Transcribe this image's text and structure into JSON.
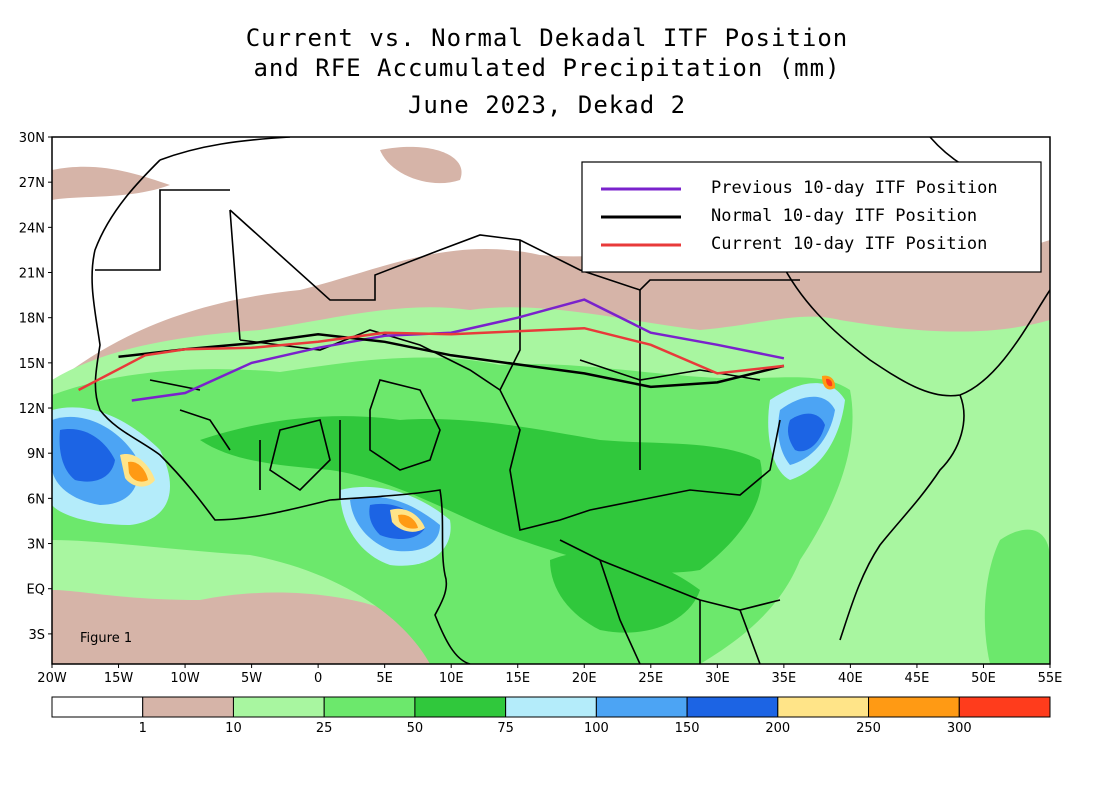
{
  "title": {
    "line1": "Current vs. Normal Dekadal ITF Position",
    "line2": "and RFE Accumulated Precipitation (mm)",
    "line3": "June 2023, Dekad 2"
  },
  "figure_label": "Figure 1",
  "legend": [
    {
      "label": "Previous 10-day ITF Position",
      "color": "#7a22cc"
    },
    {
      "label": "Normal 10-day ITF Position",
      "color": "#000000"
    },
    {
      "label": "Current 10-day ITF Position",
      "color": "#e83a3a"
    }
  ],
  "axes": {
    "lon_labels": [
      "20W",
      "15W",
      "10W",
      "5W",
      "0",
      "5E",
      "10E",
      "15E",
      "20E",
      "25E",
      "30E",
      "35E",
      "40E",
      "45E",
      "50E",
      "55E"
    ],
    "lat_labels": [
      "30N",
      "27N",
      "24N",
      "21N",
      "18N",
      "15N",
      "12N",
      "9N",
      "6N",
      "3N",
      "EQ",
      "3S"
    ]
  },
  "colorbar": {
    "colors": [
      "#ffffff",
      "#d6b4a8",
      "#a8f6a0",
      "#6ce86c",
      "#30c83c",
      "#b4ecfa",
      "#4ca4f4",
      "#1c64e4",
      "#ffe488",
      "#ff9a14",
      "#ff3c1c"
    ],
    "ticks": [
      "1",
      "10",
      "25",
      "50",
      "75",
      "100",
      "150",
      "200",
      "250",
      "300"
    ]
  },
  "itf_lines": {
    "previous": [
      [
        -14,
        12.5
      ],
      [
        -10,
        13
      ],
      [
        -5,
        15
      ],
      [
        0,
        16
      ],
      [
        5,
        16.8
      ],
      [
        10,
        17
      ],
      [
        15,
        18
      ],
      [
        20,
        19.2
      ],
      [
        25,
        17
      ],
      [
        30,
        16.2
      ],
      [
        35,
        15.3
      ]
    ],
    "normal": [
      [
        -15,
        15.4
      ],
      [
        -10,
        15.9
      ],
      [
        -5,
        16.3
      ],
      [
        0,
        16.9
      ],
      [
        5,
        16.4
      ],
      [
        10,
        15.5
      ],
      [
        15,
        14.9
      ],
      [
        20,
        14.3
      ],
      [
        25,
        13.4
      ],
      [
        30,
        13.7
      ],
      [
        35,
        14.8
      ]
    ],
    "current": [
      [
        -18,
        13.2
      ],
      [
        -13,
        15.5
      ],
      [
        -10,
        15.9
      ],
      [
        -5,
        16
      ],
      [
        0,
        16.4
      ],
      [
        5,
        17
      ],
      [
        10,
        16.9
      ],
      [
        15,
        17.1
      ],
      [
        20,
        17.3
      ],
      [
        25,
        16.2
      ],
      [
        30,
        14.3
      ],
      [
        35,
        14.8
      ]
    ]
  }
}
